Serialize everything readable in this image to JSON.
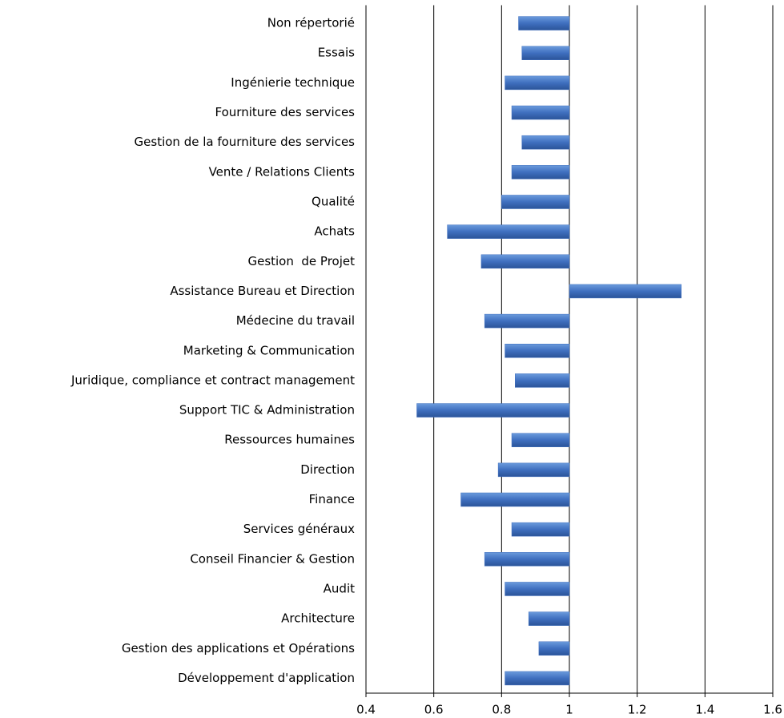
{
  "chart_data": {
    "type": "barh",
    "categories": [
      "Non répertorié",
      "Essais",
      "Ingénierie technique",
      "Fourniture des services",
      "Gestion de la fourniture des services",
      "Vente / Relations Clients",
      "Qualité",
      "Achats",
      "Gestion  de Projet",
      "Assistance Bureau et Direction",
      "Médecine du travail",
      "Marketing & Communication",
      "Juridique, compliance et contract management",
      "Support TIC & Administration",
      "Ressources humaines",
      "Direction",
      "Finance",
      "Services généraux",
      "Conseil Financier & Gestion",
      "Audit",
      "Architecture",
      "Gestion des applications et Opérations",
      "Développement d'application"
    ],
    "values": [
      0.85,
      0.86,
      0.81,
      0.83,
      0.86,
      0.83,
      0.8,
      0.64,
      0.74,
      1.33,
      0.75,
      0.81,
      0.84,
      0.55,
      0.83,
      0.79,
      0.68,
      0.83,
      0.75,
      0.81,
      0.88,
      0.91,
      0.81
    ],
    "color": "#3f6fbf",
    "baseline": 1,
    "xlim": [
      0.4,
      1.6
    ],
    "xticks": [
      0.4,
      0.6,
      0.8,
      1,
      1.2,
      1.4,
      1.6
    ],
    "grid": true
  }
}
